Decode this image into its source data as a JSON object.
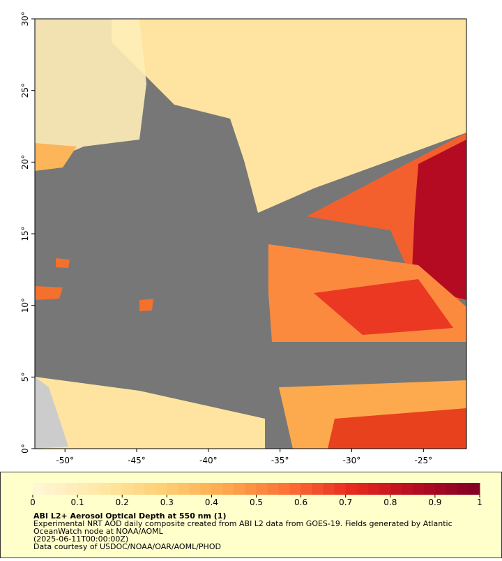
{
  "map": {
    "xlim": [
      -52.1,
      -22
    ],
    "ylim": [
      0,
      30
    ],
    "xticks": [
      {
        "value": -50,
        "label": "-50°"
      },
      {
        "value": -45,
        "label": "-45°"
      },
      {
        "value": -40,
        "label": "-40°"
      },
      {
        "value": -35,
        "label": "-35°"
      },
      {
        "value": -30,
        "label": "-30°"
      },
      {
        "value": -25,
        "label": "-25°"
      }
    ],
    "yticks": [
      {
        "value": 0,
        "label": "0°"
      },
      {
        "value": 5,
        "label": "5°"
      },
      {
        "value": 10,
        "label": "10°"
      },
      {
        "value": 15,
        "label": "15°"
      },
      {
        "value": 20,
        "label": "20°"
      },
      {
        "value": 25,
        "label": "25°"
      },
      {
        "value": 30,
        "label": "30°"
      }
    ]
  },
  "colorbar": {
    "lim": [
      0,
      1
    ],
    "ticks": [
      0,
      0.1,
      0.2,
      0.3,
      0.4,
      0.5,
      0.6,
      0.7,
      0.8,
      0.9,
      1
    ],
    "colors": [
      "#fff7d9",
      "#ffe9a8",
      "#fed176",
      "#fdaa4f",
      "#fc7036",
      "#e8291e",
      "#b50b22",
      "#800026"
    ]
  },
  "caption": {
    "title": "ABI L2+ Aerosol Optical Depth at 550 nm (1)",
    "lines": [
      "Experimental NRT AOD daily composite created from ABI L2 data from GOES-19. Fields generated by Atlantic",
      "OceanWatch node at NOAA/AOML",
      "(2025-06-11T00:00:00Z)",
      "Data courtesy of USDOC/NOAA/OAR/AOML/PHOD"
    ]
  }
}
